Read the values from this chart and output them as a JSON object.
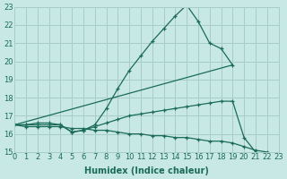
{
  "xlabel": "Humidex (Indice chaleur)",
  "background_color": "#c8e8e5",
  "grid_color": "#a8cccb",
  "line_color": "#1a6b5a",
  "xlim": [
    0,
    23
  ],
  "ylim": [
    15,
    23
  ],
  "yticks": [
    15,
    16,
    17,
    18,
    19,
    20,
    21,
    22,
    23
  ],
  "xticks": [
    0,
    1,
    2,
    3,
    4,
    5,
    6,
    7,
    8,
    9,
    10,
    11,
    12,
    13,
    14,
    15,
    16,
    17,
    18,
    19,
    20,
    21,
    22,
    23
  ],
  "lines": [
    {
      "x": [
        0,
        1,
        2,
        3,
        4,
        5,
        6,
        7,
        8,
        9,
        10,
        11,
        12,
        13,
        14,
        15,
        16,
        17,
        18,
        19
      ],
      "y": [
        16.5,
        16.5,
        16.6,
        16.6,
        16.5,
        16.1,
        16.2,
        16.5,
        17.4,
        18.5,
        19.5,
        20.3,
        21.1,
        21.8,
        22.5,
        23.1,
        22.2,
        21.0,
        20.7,
        19.8
      ],
      "markers": true
    },
    {
      "x": [
        0,
        19
      ],
      "y": [
        16.5,
        19.8
      ],
      "markers": false
    },
    {
      "x": [
        0,
        1,
        2,
        3,
        4,
        5,
        6,
        7,
        8,
        9,
        10,
        11,
        12,
        13,
        14,
        15,
        16,
        17,
        18,
        19,
        20,
        21
      ],
      "y": [
        16.5,
        16.5,
        16.5,
        16.5,
        16.5,
        16.1,
        16.2,
        16.4,
        16.6,
        16.8,
        17.0,
        17.1,
        17.2,
        17.3,
        17.4,
        17.5,
        17.6,
        17.7,
        17.8,
        17.8,
        15.8,
        15.0
      ],
      "markers": true
    },
    {
      "x": [
        0,
        1,
        2,
        3,
        4,
        5,
        6,
        7,
        8,
        9,
        10,
        11,
        12,
        13,
        14,
        15,
        16,
        17,
        18,
        19,
        20,
        21,
        22,
        23
      ],
      "y": [
        16.5,
        16.4,
        16.4,
        16.4,
        16.4,
        16.3,
        16.3,
        16.2,
        16.2,
        16.1,
        16.0,
        16.0,
        15.9,
        15.9,
        15.8,
        15.8,
        15.7,
        15.6,
        15.6,
        15.5,
        15.3,
        15.1,
        15.0,
        14.8
      ],
      "markers": true
    }
  ]
}
